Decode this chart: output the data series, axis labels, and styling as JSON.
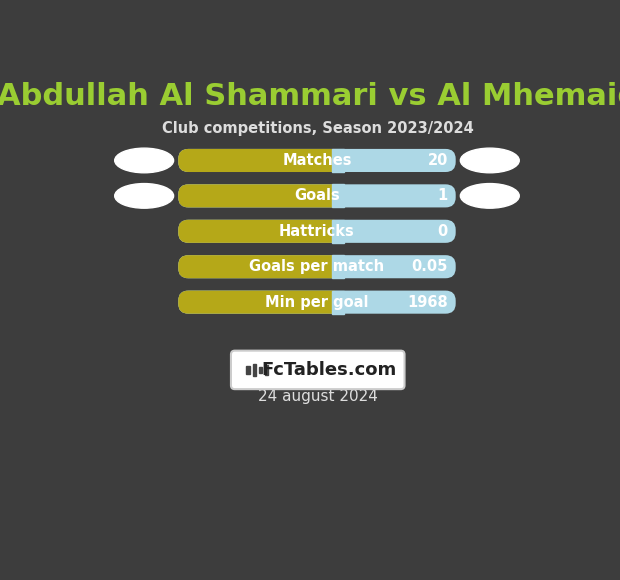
{
  "title": "Abdullah Al Shammari vs Al Mhemaid",
  "subtitle": "Club competitions, Season 2023/2024",
  "date_label": "24 august 2024",
  "background_color": "#3d3d3d",
  "title_color": "#9acd32",
  "subtitle_color": "#dddddd",
  "date_color": "#dddddd",
  "rows": [
    {
      "label": "Matches",
      "value": "20"
    },
    {
      "label": "Goals",
      "value": "1"
    },
    {
      "label": "Hattricks",
      "value": "0"
    },
    {
      "label": "Goals per match",
      "value": "0.05"
    },
    {
      "label": "Min per goal",
      "value": "1968"
    }
  ],
  "bar_left_color": "#b5a818",
  "bar_right_color": "#add8e6",
  "bar_text_color": "#ffffff",
  "logo_bg": "#ffffff",
  "logo_text": "FcTables.com",
  "logo_border_color": "#cccccc",
  "oval_color": "#ffffff",
  "oval_rows": [
    0,
    1
  ]
}
